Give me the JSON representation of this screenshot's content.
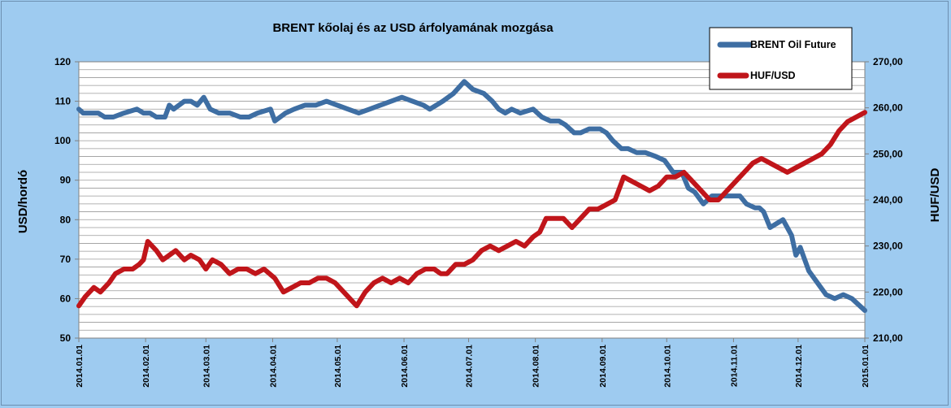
{
  "chart_data": {
    "type": "line",
    "title": "BRENT kőolaj és az USD árfolyamának mozgása",
    "ylabel": "USD/hordó",
    "y2label": "HUF/USD",
    "ylim": [
      50,
      120
    ],
    "y2lim": [
      210,
      270
    ],
    "yticks": [
      "50",
      "60",
      "70",
      "80",
      "90",
      "100",
      "110",
      "120"
    ],
    "y2ticks": [
      "210,00",
      "220,00",
      "230,00",
      "240,00",
      "250,00",
      "260,00",
      "270,00"
    ],
    "xlim": [
      "2014-01-01",
      "2015-01-01"
    ],
    "xticks": [
      "2014.01.01",
      "2014.02.01",
      "2014.03.01",
      "2014.04.01",
      "2014.05.01",
      "2014.06.01",
      "2014.07.01",
      "2014.08.01",
      "2014.09.01",
      "2014.10.01",
      "2014.11.01",
      "2014.12.01",
      "2015.01.01"
    ],
    "grid": true,
    "legend": "top-right",
    "series": [
      {
        "name": "BRENT Oil Future",
        "axis": "left",
        "color": "#3e6ea3",
        "x": [
          "2014-01-01",
          "2014-01-03",
          "2014-01-07",
          "2014-01-10",
          "2014-01-13",
          "2014-01-17",
          "2014-01-22",
          "2014-01-28",
          "2014-01-31",
          "2014-02-03",
          "2014-02-06",
          "2014-02-10",
          "2014-02-12",
          "2014-02-14",
          "2014-02-19",
          "2014-02-22",
          "2014-02-25",
          "2014-02-28",
          "2014-03-03",
          "2014-03-07",
          "2014-03-12",
          "2014-03-17",
          "2014-03-21",
          "2014-03-25",
          "2014-03-31",
          "2014-04-02",
          "2014-04-07",
          "2014-04-11",
          "2014-04-16",
          "2014-04-21",
          "2014-04-26",
          "2014-05-01",
          "2014-05-06",
          "2014-05-11",
          "2014-05-16",
          "2014-05-21",
          "2014-05-26",
          "2014-05-31",
          "2014-06-05",
          "2014-06-10",
          "2014-06-13",
          "2014-06-16",
          "2014-06-19",
          "2014-06-24",
          "2014-06-29",
          "2014-07-03",
          "2014-07-08",
          "2014-07-12",
          "2014-07-15",
          "2014-07-18",
          "2014-07-21",
          "2014-07-25",
          "2014-07-31",
          "2014-08-04",
          "2014-08-08",
          "2014-08-12",
          "2014-08-15",
          "2014-08-19",
          "2014-08-22",
          "2014-08-26",
          "2014-08-31",
          "2014-09-03",
          "2014-09-06",
          "2014-09-10",
          "2014-09-13",
          "2014-09-17",
          "2014-09-21",
          "2014-09-26",
          "2014-09-30",
          "2014-10-04",
          "2014-10-08",
          "2014-10-11",
          "2014-10-14",
          "2014-10-18",
          "2014-10-22",
          "2014-10-26",
          "2014-10-30",
          "2014-11-04",
          "2014-11-07",
          "2014-11-11",
          "2014-11-13",
          "2014-11-15",
          "2014-11-18",
          "2014-11-21",
          "2014-11-24",
          "2014-11-26",
          "2014-11-28",
          "2014-11-30",
          "2014-12-02",
          "2014-12-06",
          "2014-12-10",
          "2014-12-14",
          "2014-12-18",
          "2014-12-22",
          "2014-12-26",
          "2014-12-30",
          "2015-01-01"
        ],
        "values": [
          108,
          107,
          107,
          107,
          106,
          106,
          107,
          108,
          107,
          107,
          106,
          106,
          109,
          108,
          110,
          110,
          109,
          111,
          108,
          107,
          107,
          106,
          106,
          107,
          108,
          105,
          107,
          108,
          109,
          109,
          110,
          109,
          108,
          107,
          108,
          109,
          110,
          111,
          110,
          109,
          108,
          109,
          110,
          112,
          115,
          113,
          112,
          110,
          108,
          107,
          108,
          107,
          108,
          106,
          105,
          105,
          104,
          102,
          102,
          103,
          103,
          102,
          100,
          98,
          98,
          97,
          97,
          96,
          95,
          92,
          92,
          88,
          87,
          84,
          86,
          86,
          86,
          86,
          84,
          83,
          83,
          82,
          78,
          79,
          80,
          78,
          76,
          71,
          73,
          67,
          64,
          61,
          60,
          61,
          60,
          58,
          57
        ]
      },
      {
        "name": "HUF/USD",
        "axis": "right",
        "color": "#c0151a",
        "x": [
          "2014-01-01",
          "2014-01-04",
          "2014-01-08",
          "2014-01-11",
          "2014-01-15",
          "2014-01-18",
          "2014-01-22",
          "2014-01-26",
          "2014-01-29",
          "2014-01-31",
          "2014-02-02",
          "2014-02-04",
          "2014-02-06",
          "2014-02-09",
          "2014-02-12",
          "2014-02-15",
          "2014-02-19",
          "2014-02-22",
          "2014-02-26",
          "2014-03-01",
          "2014-03-04",
          "2014-03-08",
          "2014-03-12",
          "2014-03-16",
          "2014-03-20",
          "2014-03-24",
          "2014-03-28",
          "2014-04-02",
          "2014-04-06",
          "2014-04-10",
          "2014-04-14",
          "2014-04-18",
          "2014-04-22",
          "2014-04-26",
          "2014-04-30",
          "2014-05-04",
          "2014-05-08",
          "2014-05-10",
          "2014-05-14",
          "2014-05-18",
          "2014-05-22",
          "2014-05-26",
          "2014-05-30",
          "2014-06-03",
          "2014-06-07",
          "2014-06-11",
          "2014-06-15",
          "2014-06-18",
          "2014-06-21",
          "2014-06-25",
          "2014-06-29",
          "2014-07-03",
          "2014-07-07",
          "2014-07-11",
          "2014-07-15",
          "2014-07-19",
          "2014-07-23",
          "2014-07-27",
          "2014-07-31",
          "2014-08-03",
          "2014-08-06",
          "2014-08-10",
          "2014-08-14",
          "2014-08-18",
          "2014-08-22",
          "2014-08-26",
          "2014-08-30",
          "2014-09-03",
          "2014-09-07",
          "2014-09-11",
          "2014-09-15",
          "2014-09-19",
          "2014-09-23",
          "2014-09-27",
          "2014-10-01",
          "2014-10-05",
          "2014-10-09",
          "2014-10-13",
          "2014-10-17",
          "2014-10-21",
          "2014-10-25",
          "2014-10-29",
          "2014-11-02",
          "2014-11-06",
          "2014-11-10",
          "2014-11-14",
          "2014-11-18",
          "2014-11-22",
          "2014-11-26",
          "2014-11-30",
          "2014-12-04",
          "2014-12-08",
          "2014-12-12",
          "2014-12-16",
          "2014-12-20",
          "2014-12-24",
          "2014-12-28",
          "2015-01-01"
        ],
        "values": [
          217,
          219,
          221,
          220,
          222,
          224,
          225,
          225,
          226,
          227,
          231,
          230,
          229,
          227,
          228,
          229,
          227,
          228,
          227,
          225,
          227,
          226,
          224,
          225,
          225,
          224,
          225,
          223,
          220,
          221,
          222,
          222,
          223,
          223,
          222,
          220,
          218,
          217,
          220,
          222,
          223,
          222,
          223,
          222,
          224,
          225,
          225,
          224,
          224,
          226,
          226,
          227,
          229,
          230,
          229,
          230,
          231,
          230,
          232,
          233,
          236,
          236,
          236,
          234,
          236,
          238,
          238,
          239,
          240,
          245,
          244,
          243,
          242,
          243,
          245,
          245,
          246,
          244,
          242,
          240,
          240,
          242,
          244,
          246,
          248,
          249,
          248,
          247,
          246,
          247,
          248,
          249,
          250,
          252,
          255,
          257,
          258,
          259
        ]
      }
    ]
  }
}
